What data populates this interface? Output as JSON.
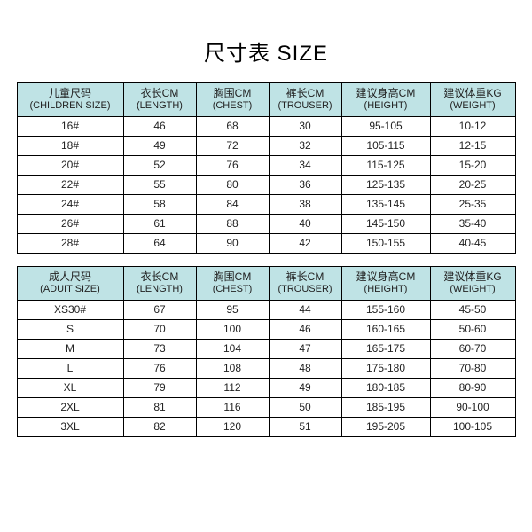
{
  "title": "尺寸表 SIZE",
  "header_bg": "#bfe3e5",
  "columns": [
    {
      "cn": "儿童尺码",
      "en": "(CHILDREN SIZE)"
    },
    {
      "cn": "衣长CM",
      "en": "(LENGTH)"
    },
    {
      "cn": "胸围CM",
      "en": "(CHEST)"
    },
    {
      "cn": "裤长CM",
      "en": "(TROUSER)"
    },
    {
      "cn": "建议身高CM",
      "en": "(HEIGHT)"
    },
    {
      "cn": "建议体重KG",
      "en": "(WEIGHT)"
    }
  ],
  "children_rows": [
    [
      "16#",
      "46",
      "68",
      "30",
      "95-105",
      "10-12"
    ],
    [
      "18#",
      "49",
      "72",
      "32",
      "105-115",
      "12-15"
    ],
    [
      "20#",
      "52",
      "76",
      "34",
      "115-125",
      "15-20"
    ],
    [
      "22#",
      "55",
      "80",
      "36",
      "125-135",
      "20-25"
    ],
    [
      "24#",
      "58",
      "84",
      "38",
      "135-145",
      "25-35"
    ],
    [
      "26#",
      "61",
      "88",
      "40",
      "145-150",
      "35-40"
    ],
    [
      "28#",
      "64",
      "90",
      "42",
      "150-155",
      "40-45"
    ]
  ],
  "adult_columns": [
    {
      "cn": "成人尺码",
      "en": "(ADUIT SIZE)"
    },
    {
      "cn": "衣长CM",
      "en": "(LENGTH)"
    },
    {
      "cn": "胸围CM",
      "en": "(CHEST)"
    },
    {
      "cn": "裤长CM",
      "en": "(TROUSER)"
    },
    {
      "cn": "建议身高CM",
      "en": "(HEIGHT)"
    },
    {
      "cn": "建议体重KG",
      "en": "(WEIGHT)"
    }
  ],
  "adult_rows": [
    [
      "XS30#",
      "67",
      "95",
      "44",
      "155-160",
      "45-50"
    ],
    [
      "S",
      "70",
      "100",
      "46",
      "160-165",
      "50-60"
    ],
    [
      "M",
      "73",
      "104",
      "47",
      "165-175",
      "60-70"
    ],
    [
      "L",
      "76",
      "108",
      "48",
      "175-180",
      "70-80"
    ],
    [
      "XL",
      "79",
      "112",
      "49",
      "180-185",
      "80-90"
    ],
    [
      "2XL",
      "81",
      "116",
      "50",
      "185-195",
      "90-100"
    ],
    [
      "3XL",
      "82",
      "120",
      "51",
      "195-205",
      "100-105"
    ]
  ],
  "col_widths": [
    "120px",
    "82px",
    "82px",
    "82px",
    "100px",
    "96px"
  ]
}
